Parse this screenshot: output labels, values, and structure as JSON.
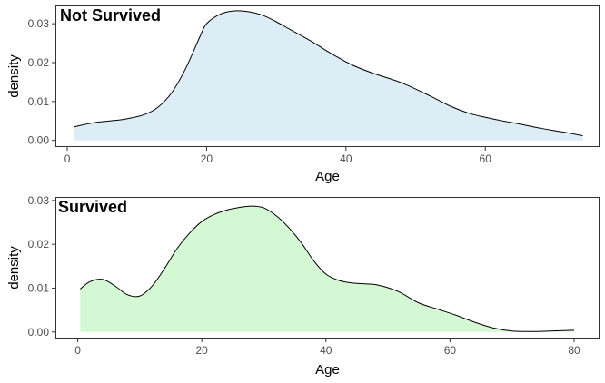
{
  "chart_data": [
    {
      "type": "area",
      "title": "Not Survived",
      "xlabel": "Age",
      "ylabel": "density",
      "xlim": [
        -1.7,
        76.4
      ],
      "ylim": [
        -0.0017,
        0.0347
      ],
      "xticks": [
        0,
        20,
        40,
        60
      ],
      "yticks": [
        0.0,
        0.01,
        0.02,
        0.03
      ],
      "ytick_labels": [
        "0.00",
        "0.01",
        "0.02",
        "0.03"
      ],
      "fill_color": "#dcedf5",
      "line_color": "#000000",
      "grid": false,
      "x": [
        1,
        4,
        8,
        11,
        13,
        15,
        17,
        19,
        20,
        22,
        24,
        26,
        28,
        30,
        32,
        35,
        38,
        41,
        44,
        48,
        52,
        55,
        58,
        62,
        65,
        68,
        71,
        74
      ],
      "y": [
        0.0035,
        0.0046,
        0.0054,
        0.0066,
        0.0085,
        0.0123,
        0.0185,
        0.0265,
        0.03,
        0.0325,
        0.0333,
        0.0331,
        0.0322,
        0.0305,
        0.0285,
        0.0255,
        0.0222,
        0.0193,
        0.0172,
        0.0148,
        0.0115,
        0.0088,
        0.0068,
        0.0052,
        0.0042,
        0.0031,
        0.0022,
        0.0012
      ]
    },
    {
      "type": "area",
      "title": "Survived",
      "xlabel": "Age",
      "ylabel": "density",
      "xlim": [
        -3.6,
        84.1
      ],
      "ylim": [
        -0.0015,
        0.0308
      ],
      "xticks": [
        0,
        20,
        40,
        60,
        80
      ],
      "yticks": [
        0.0,
        0.01,
        0.02,
        0.03
      ],
      "ytick_labels": [
        "0.00",
        "0.01",
        "0.02",
        "0.03"
      ],
      "fill_color": "#d4f7d4",
      "line_color": "#000000",
      "grid": false,
      "x": [
        0.4,
        2,
        4,
        6,
        8,
        10,
        12,
        14,
        16,
        18,
        20,
        22,
        24,
        26,
        28,
        30,
        32,
        34,
        36,
        38,
        40,
        42,
        44,
        46,
        48,
        50,
        52,
        55,
        58,
        61,
        64,
        67,
        70,
        73,
        76,
        80
      ],
      "y": [
        0.0098,
        0.0115,
        0.012,
        0.0105,
        0.0085,
        0.0082,
        0.0105,
        0.0145,
        0.019,
        0.0225,
        0.0252,
        0.0268,
        0.0278,
        0.0284,
        0.0287,
        0.0283,
        0.0265,
        0.0238,
        0.0204,
        0.0163,
        0.0132,
        0.0118,
        0.0112,
        0.011,
        0.0108,
        0.0101,
        0.009,
        0.0066,
        0.0052,
        0.0038,
        0.0022,
        0.0009,
        0.0002,
        0.0001,
        0.0002,
        0.0004
      ]
    }
  ]
}
